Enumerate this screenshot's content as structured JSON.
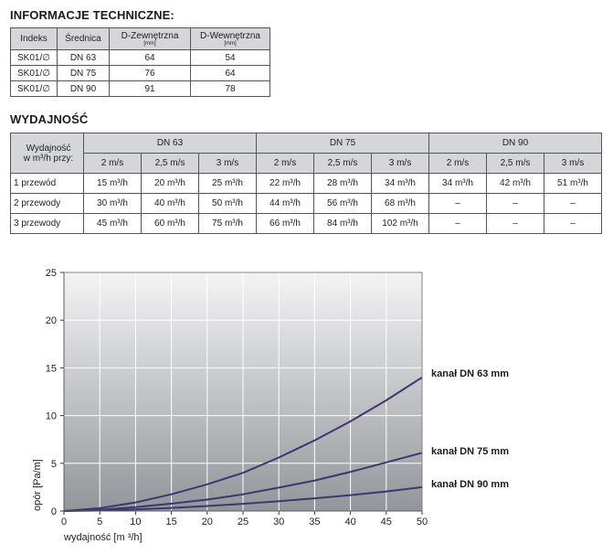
{
  "tech": {
    "title": "INFORMACJE TECHNICZNE:",
    "headers": [
      "Indeks",
      "Średnica",
      "D-Zewnętrzna",
      "D-Wewnętrzna"
    ],
    "unit": "[mm]",
    "rows": [
      [
        "SK01/∅",
        "DN 63",
        "64",
        "54"
      ],
      [
        "SK01/∅",
        "DN 75",
        "76",
        "64"
      ],
      [
        "SK01/∅",
        "DN 90",
        "91",
        "78"
      ]
    ]
  },
  "perf": {
    "title": "WYDAJNOŚĆ",
    "corner_line1": "Wydajność",
    "corner_line2": "w m³/h przy:",
    "groups": [
      "DN 63",
      "DN 75",
      "DN 90"
    ],
    "speeds": [
      "2 m/s",
      "2,5 m/s",
      "3 m/s",
      "2 m/s",
      "2,5 m/s",
      "3 m/s",
      "2 m/s",
      "2,5 m/s",
      "3 m/s"
    ],
    "rows": [
      {
        "label": "1 przewód",
        "cells": [
          "15 m³/h",
          "20 m³/h",
          "25 m³/h",
          "22 m³/h",
          "28 m³/h",
          "34 m³/h",
          "34 m³/h",
          "42 m³/h",
          "51 m³/h"
        ]
      },
      {
        "label": "2 przewody",
        "cells": [
          "30 m³/h",
          "40 m³/h",
          "50 m³/h",
          "44 m³/h",
          "56 m³/h",
          "68 m³/h",
          "–",
          "–",
          "–"
        ]
      },
      {
        "label": "3 przewody",
        "cells": [
          "45 m³/h",
          "60 m³/h",
          "75 m³/h",
          "66 m³/h",
          "84 m³/h",
          "102 m³/h",
          "–",
          "–",
          "–"
        ]
      }
    ]
  },
  "chart_data": {
    "type": "line",
    "xlabel": "wydajność  [m ³/h]",
    "ylabel": "opór  [Pa/m]",
    "xlim": [
      0,
      50
    ],
    "ylim": [
      0,
      25
    ],
    "xticks": [
      0,
      5,
      10,
      15,
      20,
      25,
      30,
      35,
      40,
      45,
      50
    ],
    "yticks": [
      0,
      5,
      10,
      15,
      20,
      25
    ],
    "grid": true,
    "series": [
      {
        "name": "kanał DN 63 mm",
        "x": [
          0,
          5,
          10,
          15,
          20,
          25,
          30,
          35,
          40,
          45,
          50
        ],
        "y": [
          0,
          0.3,
          0.9,
          1.75,
          2.8,
          4.0,
          5.6,
          7.4,
          9.4,
          11.6,
          14.0
        ]
      },
      {
        "name": "kanał DN 75 mm",
        "x": [
          0,
          5,
          10,
          15,
          20,
          25,
          30,
          35,
          40,
          45,
          50
        ],
        "y": [
          0,
          0.12,
          0.4,
          0.78,
          1.2,
          1.75,
          2.45,
          3.2,
          4.1,
          5.1,
          6.1
        ]
      },
      {
        "name": "kanał DN 90 mm",
        "x": [
          0,
          5,
          10,
          15,
          20,
          25,
          30,
          35,
          40,
          45,
          50
        ],
        "y": [
          0,
          0.05,
          0.17,
          0.33,
          0.53,
          0.76,
          1.03,
          1.33,
          1.67,
          2.05,
          2.5
        ]
      }
    ],
    "line_color": "#3a3870"
  }
}
